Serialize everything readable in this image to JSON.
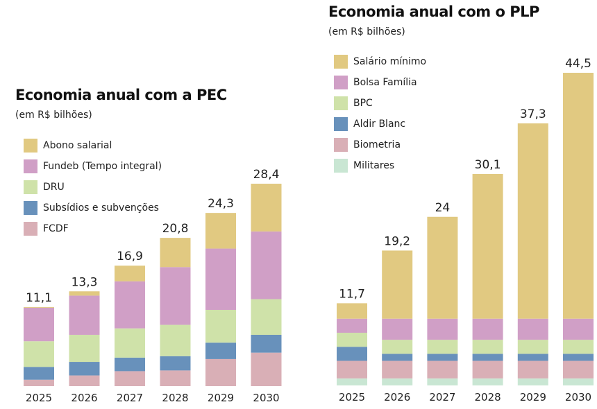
{
  "chart_data": [
    {
      "type": "bar",
      "stacked": true,
      "title": "Economia anual com a PEC",
      "subtitle": "(em R$ bilhões)",
      "xlabel": "",
      "ylabel": "",
      "categories": [
        "2025",
        "2026",
        "2027",
        "2028",
        "2029",
        "2030"
      ],
      "totals": [
        "11,1",
        "13,3",
        "16,9",
        "20,8",
        "24,3",
        "28,4"
      ],
      "total_values": [
        11.1,
        13.3,
        16.9,
        20.8,
        24.3,
        28.4
      ],
      "ylim": [
        0,
        28.4
      ],
      "grid": false,
      "legend_position": "top-left",
      "series": [
        {
          "name": "FCDF",
          "color": "#d9afb6",
          "values": [
            0.9,
            1.5,
            2.1,
            2.2,
            3.8,
            4.7
          ]
        },
        {
          "name": "Subsídios e subvenções",
          "color": "#6891bb",
          "values": [
            1.8,
            1.9,
            1.9,
            2.0,
            2.3,
            2.5
          ]
        },
        {
          "name": "DRU",
          "color": "#cfe2a9",
          "values": [
            3.6,
            3.8,
            4.1,
            4.4,
            4.6,
            5.0
          ]
        },
        {
          "name": "Fundeb (Tempo integral)",
          "color": "#d09fc6",
          "values": [
            4.7,
            5.5,
            6.6,
            8.1,
            8.6,
            9.5
          ]
        },
        {
          "name": "Abono salarial",
          "color": "#e1c981",
          "values": [
            0.1,
            0.6,
            2.2,
            4.1,
            5.0,
            6.7
          ]
        }
      ]
    },
    {
      "type": "bar",
      "stacked": true,
      "title": "Economia anual com o PLP",
      "subtitle": "(em R$ bilhões)",
      "xlabel": "",
      "ylabel": "",
      "categories": [
        "2025",
        "2026",
        "2027",
        "2028",
        "2029",
        "2030"
      ],
      "totals": [
        "11,7",
        "19,2",
        "24",
        "30,1",
        "37,3",
        "44,5"
      ],
      "total_values": [
        11.7,
        19.2,
        24,
        30.1,
        37.3,
        44.5
      ],
      "ylim": [
        0,
        44.5
      ],
      "grid": false,
      "legend_position": "top-left",
      "series": [
        {
          "name": "Militares",
          "color": "#c9e6d3",
          "values": [
            1.0,
            1.0,
            1.0,
            1.0,
            1.0,
            1.0
          ]
        },
        {
          "name": "Biometria",
          "color": "#d9afb6",
          "values": [
            2.5,
            2.5,
            2.5,
            2.5,
            2.5,
            2.5
          ]
        },
        {
          "name": "Aldir Blanc",
          "color": "#6891bb",
          "values": [
            2.0,
            1.0,
            1.0,
            1.0,
            1.0,
            1.0
          ]
        },
        {
          "name": "BPC",
          "color": "#cfe2a9",
          "values": [
            2.0,
            2.0,
            2.0,
            2.0,
            2.0,
            2.0
          ]
        },
        {
          "name": "Bolsa Família",
          "color": "#d09fc6",
          "values": [
            2.0,
            3.0,
            3.0,
            3.0,
            3.0,
            3.0
          ]
        },
        {
          "name": "Salário mínimo",
          "color": "#e1c981",
          "values": [
            2.2,
            9.7,
            14.5,
            20.6,
            27.8,
            35.0
          ]
        }
      ]
    }
  ]
}
